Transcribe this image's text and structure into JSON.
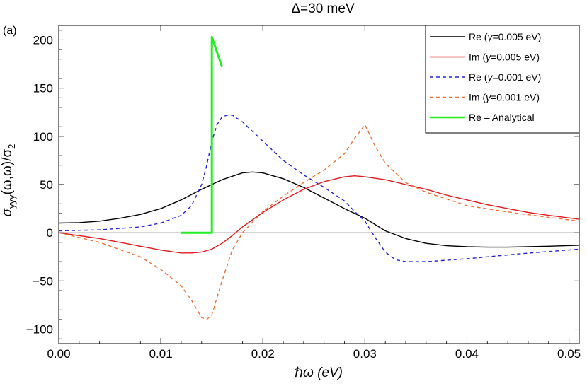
{
  "chart_data": {
    "type": "line",
    "title": "Δ=30 meV",
    "panel_label": "(a)",
    "xlabel": "ℏω (eV)",
    "ylabel": "σ_yyy(ω,ω)/σ_2",
    "ylabel_parts": {
      "sigma": "σ",
      "sub": "yyy",
      "args": "(ω,ω)/σ",
      "sub2": "2"
    },
    "xlim": [
      0.0,
      0.051
    ],
    "ylim": [
      -115,
      215
    ],
    "x_ticks": [
      0.0,
      0.01,
      0.02,
      0.03,
      0.04,
      0.05
    ],
    "x_tick_labels": [
      "0.00",
      "0.01",
      "0.02",
      "0.03",
      "0.04",
      "0.05"
    ],
    "y_ticks": [
      -100,
      -50,
      0,
      50,
      100,
      150,
      200
    ],
    "y_tick_labels": [
      "−100",
      "−50",
      "0",
      "50",
      "100",
      "150",
      "200"
    ],
    "zero_line": true,
    "legend_position": "top-right",
    "series": [
      {
        "name": "Re (γ=0.005 eV)",
        "legend_prefix": "Re (",
        "legend_suffix": "=0.005 eV)",
        "color": "#000000",
        "dash": "solid",
        "x": [
          0.0,
          0.002,
          0.004,
          0.006,
          0.008,
          0.01,
          0.012,
          0.014,
          0.016,
          0.018,
          0.019,
          0.02,
          0.022,
          0.024,
          0.026,
          0.028,
          0.03,
          0.032,
          0.034,
          0.036,
          0.038,
          0.04,
          0.042,
          0.044,
          0.046,
          0.048,
          0.051
        ],
        "y": [
          10,
          10.5,
          12,
          15,
          19,
          25,
          34,
          45,
          55,
          62,
          63,
          62,
          56,
          47,
          36,
          25,
          15,
          2,
          -6,
          -11,
          -13.5,
          -14.5,
          -15,
          -15,
          -14.5,
          -14,
          -13
        ]
      },
      {
        "name": "Im (γ=0.005 eV)",
        "legend_prefix": "Im (",
        "legend_suffix": "=0.005 eV)",
        "color": "#e41a1c",
        "dash": "solid",
        "x": [
          0.0,
          0.002,
          0.004,
          0.006,
          0.008,
          0.01,
          0.012,
          0.013,
          0.014,
          0.015,
          0.016,
          0.017,
          0.018,
          0.02,
          0.022,
          0.024,
          0.026,
          0.028,
          0.029,
          0.03,
          0.032,
          0.034,
          0.036,
          0.038,
          0.04,
          0.042,
          0.044,
          0.046,
          0.048,
          0.051
        ],
        "y": [
          0,
          -3,
          -6,
          -10,
          -14,
          -18,
          -21,
          -21,
          -20,
          -17,
          -11,
          -3,
          6,
          21,
          34,
          45,
          53,
          58,
          59,
          58,
          55,
          50,
          45,
          39,
          34,
          29,
          25,
          21,
          18,
          14
        ]
      },
      {
        "name": "Re (γ=0.001 eV)",
        "legend_prefix": "Re (",
        "legend_suffix": "=0.001 eV)",
        "color": "#2222dd",
        "dash": "5,4",
        "x": [
          0.0,
          0.004,
          0.008,
          0.01,
          0.012,
          0.013,
          0.014,
          0.0145,
          0.015,
          0.0155,
          0.016,
          0.0165,
          0.017,
          0.018,
          0.02,
          0.022,
          0.024,
          0.026,
          0.028,
          0.029,
          0.03,
          0.031,
          0.032,
          0.033,
          0.034,
          0.036,
          0.04,
          0.045,
          0.051
        ],
        "y": [
          2,
          3,
          6,
          10,
          18,
          28,
          50,
          70,
          95,
          112,
          120,
          122,
          122,
          115,
          95,
          75,
          60,
          47,
          33,
          22,
          12,
          -5,
          -20,
          -28,
          -30,
          -30,
          -27,
          -22,
          -17
        ]
      },
      {
        "name": "Im (γ=0.001 eV)",
        "legend_prefix": "Im (",
        "legend_suffix": "=0.001 eV)",
        "color": "#f07030",
        "dash": "5,4",
        "x": [
          0.0,
          0.004,
          0.008,
          0.01,
          0.012,
          0.013,
          0.014,
          0.0145,
          0.015,
          0.016,
          0.017,
          0.018,
          0.02,
          0.022,
          0.024,
          0.026,
          0.028,
          0.029,
          0.03,
          0.031,
          0.032,
          0.034,
          0.036,
          0.04,
          0.045,
          0.051
        ],
        "y": [
          0,
          -10,
          -25,
          -38,
          -55,
          -70,
          -88,
          -90,
          -85,
          -50,
          -18,
          0,
          22,
          38,
          52,
          65,
          82,
          98,
          112,
          90,
          72,
          52,
          42,
          28,
          20,
          12
        ]
      },
      {
        "name": "Re – Analytical",
        "legend_prefix": "Re – Analytical",
        "legend_suffix": "",
        "color": "#22ee22",
        "dash": "solid",
        "x": [
          0.012,
          0.015,
          0.015,
          0.016
        ],
        "y": [
          0,
          0,
          203,
          172
        ]
      }
    ]
  }
}
